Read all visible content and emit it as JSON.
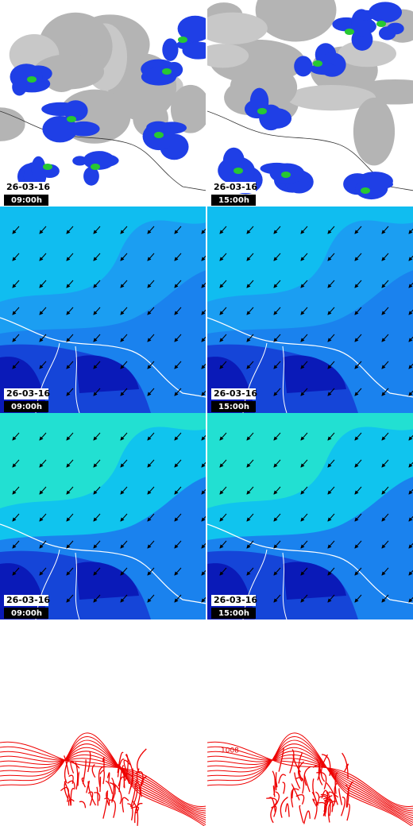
{
  "panels": [
    {
      "date": "26-03-16",
      "time": "09:00h"
    },
    {
      "date": "26-03-16",
      "time": "15:00h"
    },
    {
      "date": "26-03-16",
      "time": "09:00h"
    },
    {
      "date": "26-03-16",
      "time": "15:00h"
    },
    {
      "date": "26-03-16",
      "time": "09:00h"
    },
    {
      "date": "26-03-16",
      "time": "15:00h"
    }
  ],
  "pressure_labels": [
    "1008"
  ]
}
